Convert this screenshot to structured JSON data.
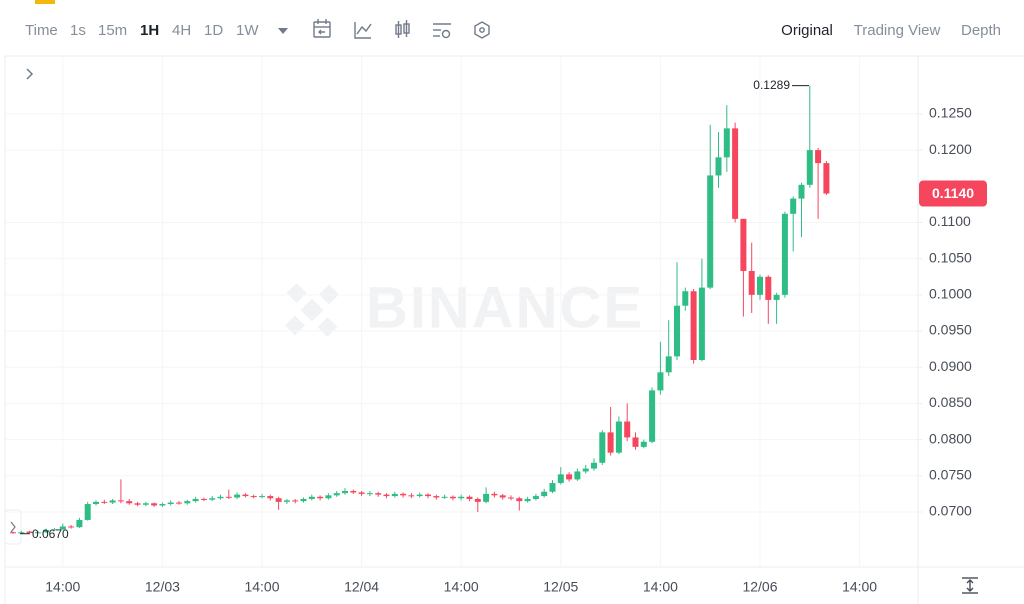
{
  "toolbar": {
    "intervals": [
      "Time",
      "1s",
      "15m",
      "1H",
      "4H",
      "1D",
      "1W"
    ],
    "active_interval": 3,
    "views": [
      "Original",
      "Trading View",
      "Depth"
    ],
    "active_view": 0
  },
  "chart_data": {
    "type": "candlestick",
    "watermark": "BINANCE",
    "up_color": "#2ebd85",
    "down_color": "#f6465d",
    "grid": true,
    "categories": [
      null,
      null,
      null,
      null,
      null,
      null,
      "14:00",
      null,
      null,
      null,
      null,
      null,
      null,
      null,
      null,
      null,
      null,
      null,
      "12/03",
      null,
      null,
      null,
      null,
      null,
      null,
      null,
      null,
      null,
      null,
      null,
      "14:00",
      null,
      null,
      null,
      null,
      null,
      null,
      null,
      null,
      null,
      null,
      null,
      "12/04",
      null,
      null,
      null,
      null,
      null,
      null,
      null,
      null,
      null,
      null,
      null,
      "14:00",
      null,
      null,
      null,
      null,
      null,
      null,
      null,
      null,
      null,
      null,
      null,
      "12/05",
      null,
      null,
      null,
      null,
      null,
      null,
      null,
      null,
      null,
      null,
      null,
      "14:00",
      null,
      null,
      null,
      null,
      null,
      null,
      null,
      null,
      null,
      null,
      null,
      "12/06",
      null,
      null,
      null,
      null,
      null,
      null,
      null,
      null,
      null,
      null,
      null,
      "14:00"
    ],
    "open": [
      0.0672,
      0.0671,
      0.0673,
      0.0671,
      0.0672,
      0.0675,
      0.0676,
      0.068,
      0.0679,
      0.0689,
      0.0711,
      0.0714,
      0.0713,
      0.0716,
      0.0715,
      0.0712,
      0.071,
      0.0712,
      0.0709,
      0.0711,
      0.0713,
      0.0712,
      0.0715,
      0.0718,
      0.0717,
      0.0719,
      0.0721,
      0.072,
      0.0724,
      0.0722,
      0.0721,
      0.0722,
      0.0719,
      0.0714,
      0.0716,
      0.0715,
      0.0718,
      0.0721,
      0.0719,
      0.0723,
      0.0726,
      0.0729,
      0.0727,
      0.0725,
      0.0726,
      0.0724,
      0.0722,
      0.0725,
      0.0723,
      0.0722,
      0.0724,
      0.0722,
      0.072,
      0.0721,
      0.0719,
      0.0721,
      0.0718,
      0.0714,
      0.0725,
      0.0723,
      0.072,
      0.0719,
      0.0715,
      0.0718,
      0.0722,
      0.0728,
      0.074,
      0.0752,
      0.0745,
      0.0756,
      0.076,
      0.0768,
      0.081,
      0.0782,
      0.0825,
      0.0803,
      0.079,
      0.0797,
      0.0868,
      0.0893,
      0.0915,
      0.0985,
      0.1005,
      0.091,
      0.101,
      0.1165,
      0.119,
      0.123,
      0.1105,
      0.1033,
      0.1,
      0.1025,
      0.0993,
      0.1,
      0.1112,
      0.1133,
      0.1152,
      0.12,
      0.1182,
      null,
      null,
      null,
      null
    ],
    "high": [
      0.0673,
      0.0674,
      0.0674,
      0.0674,
      0.0677,
      0.0678,
      0.0684,
      0.0682,
      0.0692,
      0.0714,
      0.0716,
      0.0717,
      0.0718,
      0.0745,
      0.0718,
      0.0714,
      0.0714,
      0.0713,
      0.0713,
      0.0716,
      0.0715,
      0.0717,
      0.0721,
      0.072,
      0.0722,
      0.0724,
      0.0731,
      0.0727,
      0.0726,
      0.0724,
      0.0725,
      0.0724,
      0.0721,
      0.0718,
      0.0718,
      0.072,
      0.0724,
      0.0723,
      0.0726,
      0.0729,
      0.0733,
      0.0731,
      0.0729,
      0.0729,
      0.0728,
      0.0726,
      0.0728,
      0.0727,
      0.0726,
      0.0727,
      0.0726,
      0.0724,
      0.0724,
      0.0723,
      0.0724,
      0.0723,
      0.072,
      0.0734,
      0.0728,
      0.0725,
      0.0723,
      0.0721,
      0.0721,
      0.0725,
      0.0732,
      0.0744,
      0.0762,
      0.0755,
      0.076,
      0.0765,
      0.0774,
      0.0813,
      0.0845,
      0.0832,
      0.085,
      0.081,
      0.08,
      0.0872,
      0.0935,
      0.0965,
      0.1045,
      0.101,
      0.1008,
      0.105,
      0.1235,
      0.1225,
      0.1262,
      0.1238,
      0.1105,
      0.1072,
      0.1028,
      0.1027,
      0.1003,
      0.1115,
      0.1136,
      0.1155,
      0.1289,
      0.1203,
      0.1185,
      null,
      null,
      null,
      null
    ],
    "low": [
      0.067,
      0.0671,
      0.0671,
      0.0671,
      0.0671,
      0.0674,
      0.0675,
      0.0677,
      0.0678,
      0.0688,
      0.0709,
      0.0711,
      0.0711,
      0.0712,
      0.071,
      0.0708,
      0.0708,
      0.0707,
      0.0707,
      0.0709,
      0.071,
      0.071,
      0.0713,
      0.0715,
      0.0715,
      0.0717,
      0.0718,
      0.0718,
      0.072,
      0.0719,
      0.0719,
      0.0716,
      0.0703,
      0.0711,
      0.0712,
      0.0713,
      0.0716,
      0.0716,
      0.0717,
      0.0721,
      0.0724,
      0.0725,
      0.0722,
      0.0722,
      0.0721,
      0.0719,
      0.072,
      0.072,
      0.0719,
      0.072,
      0.0719,
      0.0717,
      0.0718,
      0.0716,
      0.0716,
      0.0715,
      0.07,
      0.0712,
      0.072,
      0.0717,
      0.0716,
      0.0702,
      0.0713,
      0.0716,
      0.072,
      0.0726,
      0.0738,
      0.0742,
      0.0743,
      0.0753,
      0.0757,
      0.0765,
      0.0778,
      0.078,
      0.0798,
      0.0786,
      0.0788,
      0.0795,
      0.0862,
      0.0888,
      0.091,
      0.0978,
      0.0905,
      0.0908,
      0.1008,
      0.1148,
      0.117,
      0.11,
      0.097,
      0.0975,
      0.0993,
      0.096,
      0.096,
      0.0996,
      0.106,
      0.108,
      0.1148,
      0.1105,
      0.1138,
      null,
      null,
      null,
      null
    ],
    "close": [
      0.0671,
      0.0672,
      0.0671,
      0.0672,
      0.0675,
      0.0676,
      0.068,
      0.0679,
      0.0689,
      0.0711,
      0.0714,
      0.0713,
      0.0716,
      0.0715,
      0.0712,
      0.071,
      0.0712,
      0.0709,
      0.0711,
      0.0713,
      0.0712,
      0.0715,
      0.0718,
      0.0717,
      0.0719,
      0.0721,
      0.072,
      0.0724,
      0.0722,
      0.0721,
      0.0722,
      0.0719,
      0.0714,
      0.0716,
      0.0715,
      0.0718,
      0.0721,
      0.0719,
      0.0723,
      0.0726,
      0.0729,
      0.0727,
      0.0725,
      0.0726,
      0.0724,
      0.0722,
      0.0725,
      0.0723,
      0.0722,
      0.0724,
      0.0722,
      0.072,
      0.0721,
      0.0719,
      0.0721,
      0.0718,
      0.0714,
      0.0725,
      0.0723,
      0.072,
      0.0719,
      0.0715,
      0.0718,
      0.0722,
      0.0728,
      0.074,
      0.0752,
      0.0745,
      0.0756,
      0.076,
      0.0768,
      0.081,
      0.0782,
      0.0825,
      0.0803,
      0.079,
      0.0797,
      0.0868,
      0.0893,
      0.0915,
      0.0985,
      0.1005,
      0.091,
      0.101,
      0.1165,
      0.119,
      0.123,
      0.1105,
      0.1033,
      0.1,
      0.1025,
      0.0993,
      0.1,
      0.1112,
      0.1133,
      0.1152,
      0.12,
      0.1182,
      0.114,
      null,
      null,
      null,
      null
    ],
    "ylim": [
      0.0624,
      0.133
    ],
    "yticks": [
      {
        "value": 0.07,
        "label": "0.0700"
      },
      {
        "value": 0.075,
        "label": "0.0750"
      },
      {
        "value": 0.08,
        "label": "0.0800"
      },
      {
        "value": 0.085,
        "label": "0.0850"
      },
      {
        "value": 0.09,
        "label": "0.0900"
      },
      {
        "value": 0.095,
        "label": "0.0950"
      },
      {
        "value": 0.1,
        "label": "0.1000"
      },
      {
        "value": 0.105,
        "label": "0.1050"
      },
      {
        "value": 0.11,
        "label": "0.1100"
      },
      {
        "value": 0.12,
        "label": "0.1200"
      },
      {
        "value": 0.125,
        "label": "0.1250"
      }
    ],
    "high_label": {
      "value": 0.1289,
      "label": "0.1289"
    },
    "low_label": {
      "value": 0.067,
      "label": "0.0670"
    },
    "last_price": {
      "value": 0.114,
      "label": "0.1140"
    }
  }
}
